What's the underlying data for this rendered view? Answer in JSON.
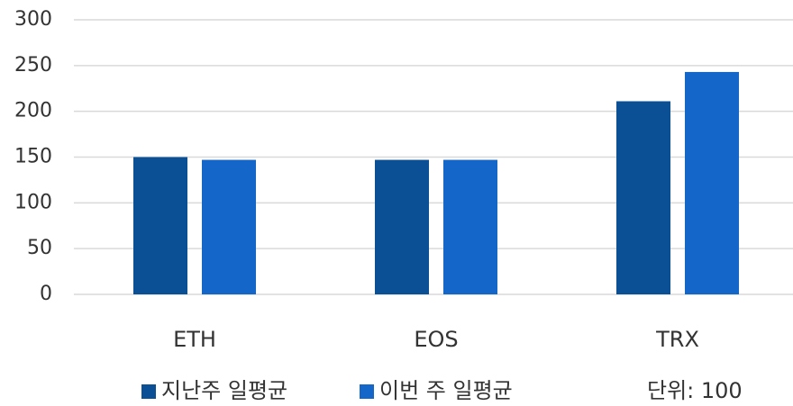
{
  "chart_data": {
    "type": "bar",
    "categories": [
      "ETH",
      "EOS",
      "TRX"
    ],
    "series": [
      {
        "name": "지난주 일평균",
        "color": "#0b4f95",
        "values": [
          150,
          147,
          211
        ]
      },
      {
        "name": "이번 주 일평균",
        "color": "#1467c8",
        "values": [
          147,
          147,
          243
        ]
      }
    ],
    "ylim": [
      0,
      300
    ],
    "yticks": [
      0,
      50,
      100,
      150,
      200,
      250,
      300
    ],
    "grid": true,
    "legend": "bottom",
    "annotation": "단위: 100"
  }
}
